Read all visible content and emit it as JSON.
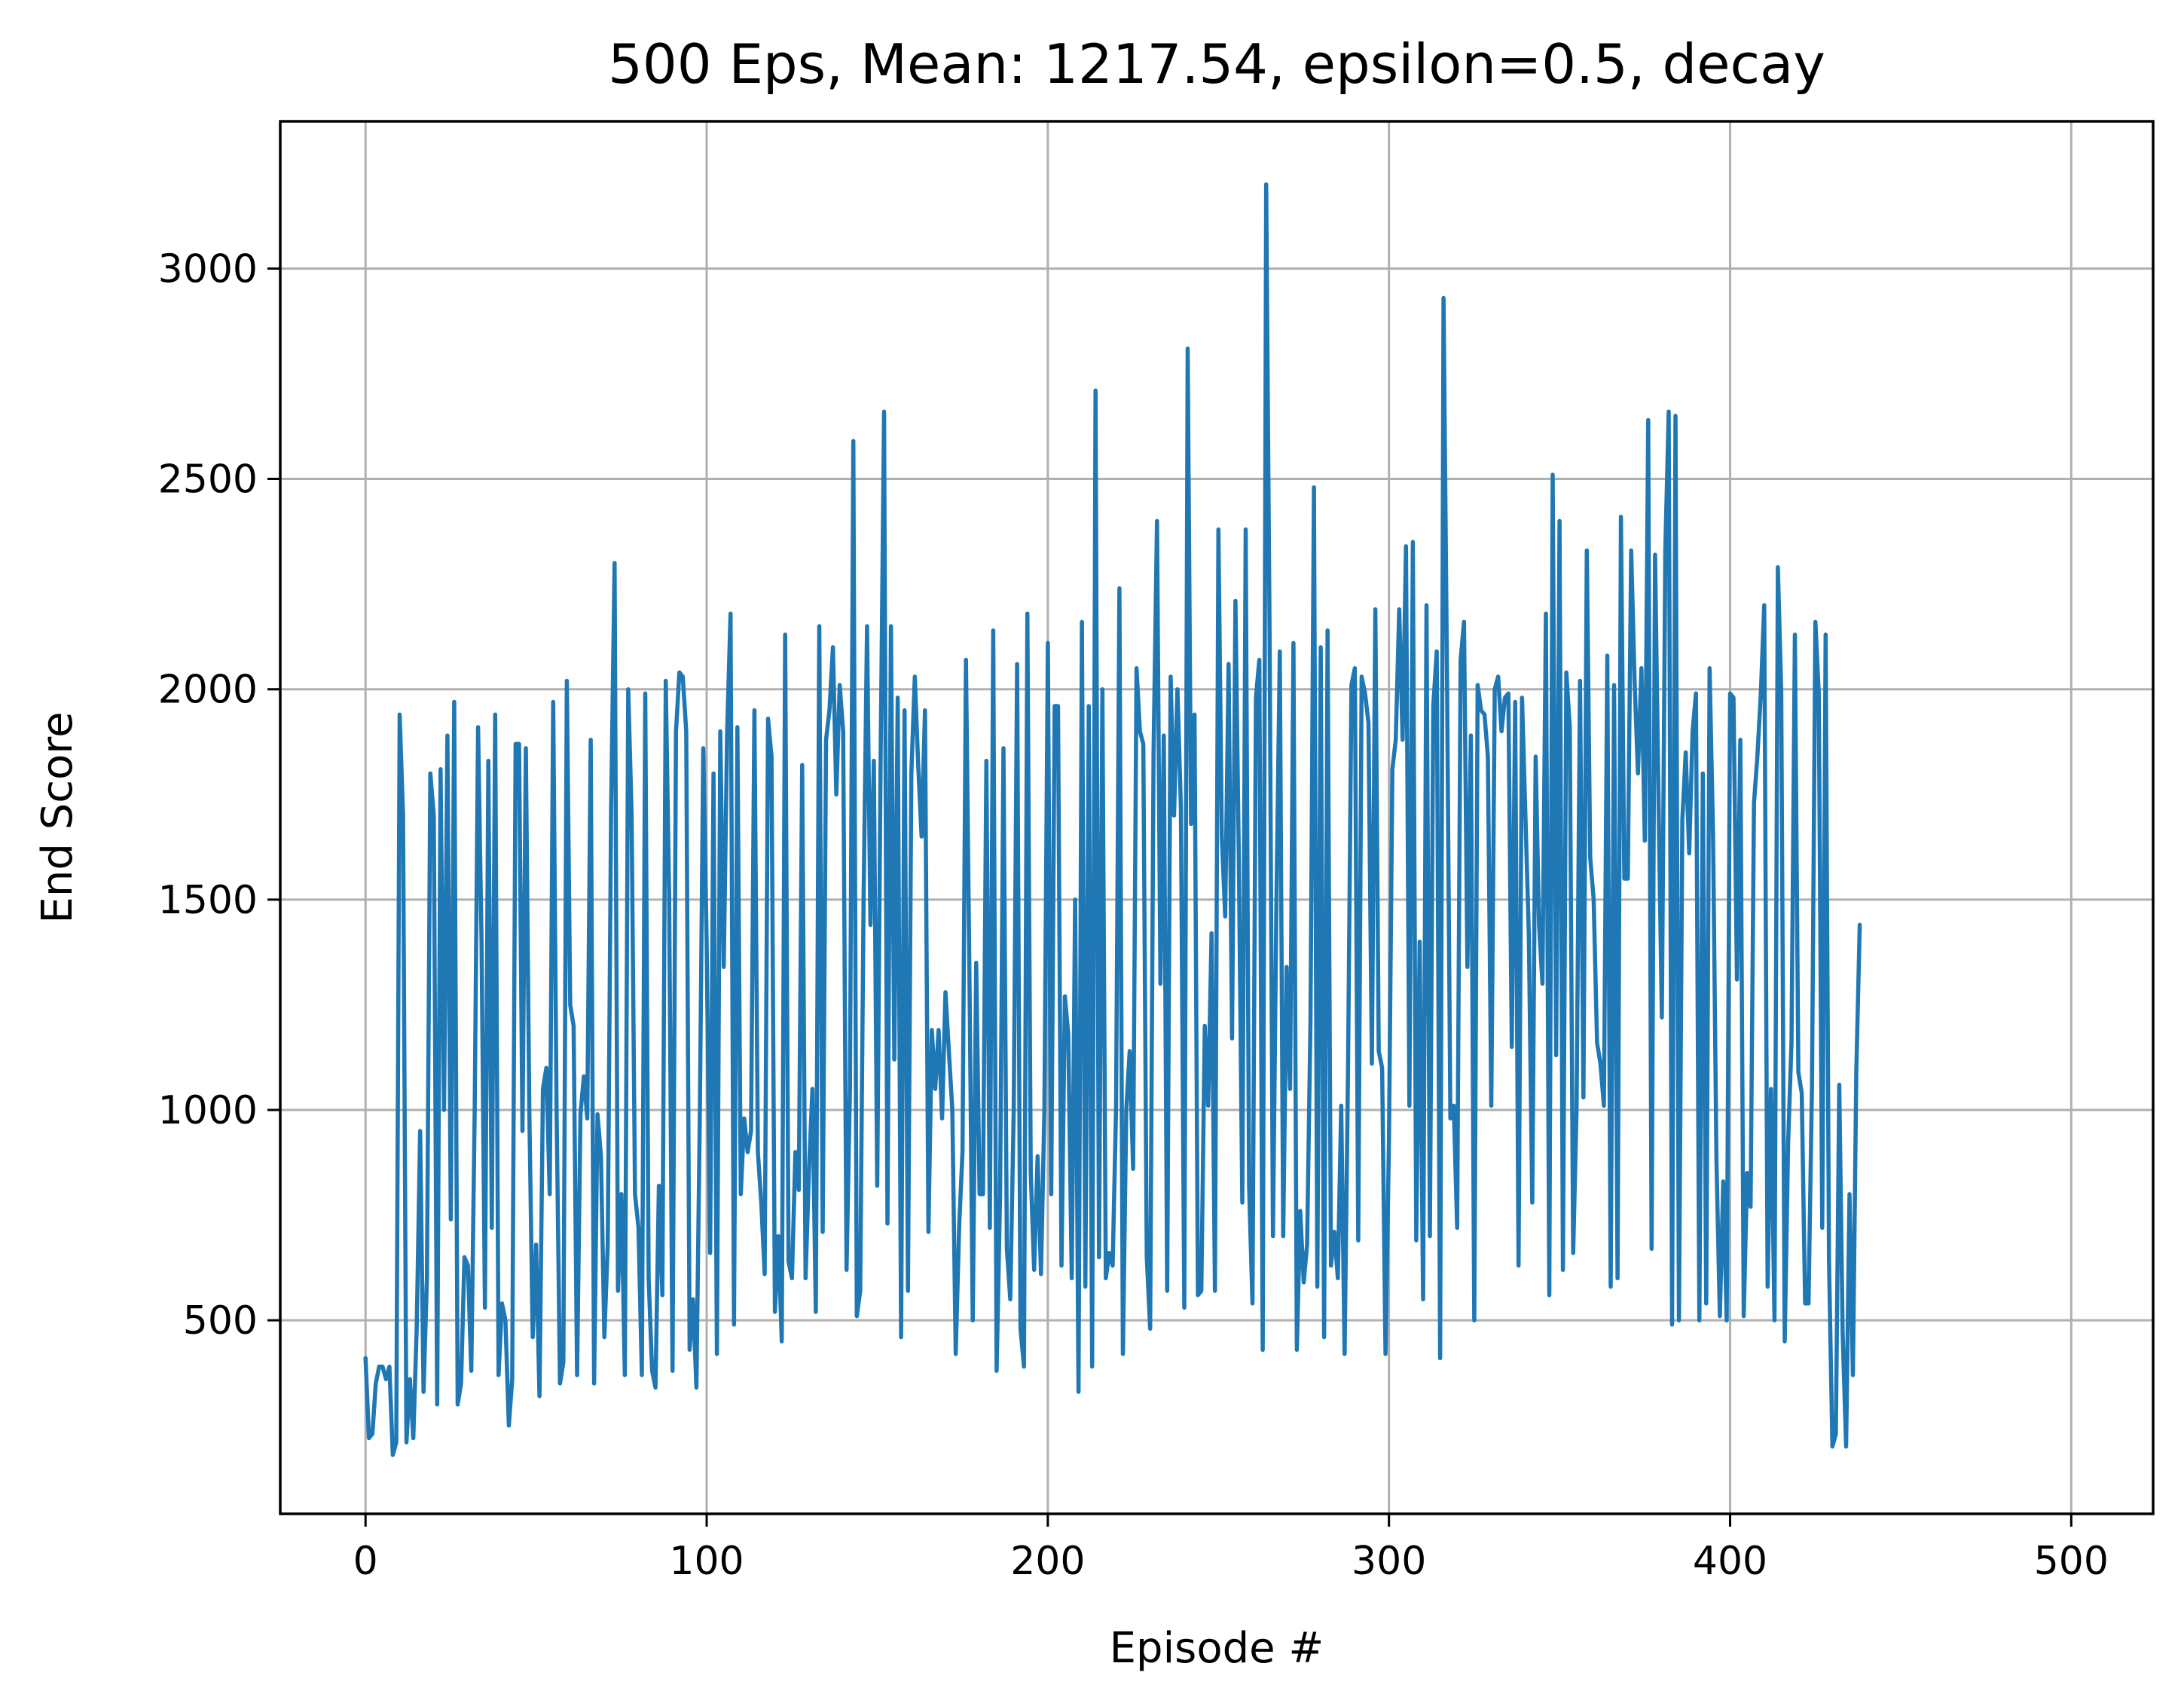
{
  "chart_data": {
    "type": "line",
    "title": "500 Eps, Mean: 1217.54, epsilon=0.5, decay",
    "xlabel": "Episode #",
    "ylabel": "End Score",
    "xlim": [
      -25,
      524
    ],
    "ylim": [
      40,
      3350
    ],
    "xticks": [
      0,
      100,
      200,
      300,
      400,
      500
    ],
    "yticks": [
      500,
      1000,
      1500,
      2000,
      2500,
      3000
    ],
    "xtick_labels": [
      "0",
      "100",
      "200",
      "300",
      "400",
      "500"
    ],
    "ytick_labels": [
      "500",
      "1000",
      "1500",
      "2000",
      "2500",
      "3000"
    ],
    "grid": true,
    "line_color": "#1f77b4",
    "series": [
      {
        "x_start": 0,
        "x_step": 1,
        "y": [
          410,
          220,
          230,
          350,
          390,
          390,
          360,
          390,
          180,
          210,
          1940,
          1700,
          210,
          360,
          220,
          480,
          950,
          330,
          600,
          1800,
          1700,
          300,
          1810,
          1000,
          1890,
          740,
          1970,
          300,
          350,
          650,
          630,
          380,
          1000,
          1910,
          1400,
          530,
          1830,
          720,
          1940,
          370,
          540,
          500,
          250,
          360,
          1870,
          1870,
          950,
          1860,
          1000,
          460,
          680,
          320,
          1050,
          1100,
          800,
          1970,
          1000,
          350,
          400,
          2020,
          1250,
          1200,
          370,
          990,
          1080,
          980,
          1880,
          350,
          990,
          890,
          460,
          680,
          1720,
          2300,
          570,
          800,
          370,
          2000,
          1700,
          800,
          720,
          370,
          1990,
          600,
          380,
          340,
          820,
          560,
          2020,
          1510,
          380,
          1900,
          2040,
          2030,
          1900,
          430,
          550,
          340,
          1000,
          1860,
          1400,
          660,
          1800,
          420,
          1900,
          1340,
          1900,
          2180,
          490,
          1910,
          800,
          980,
          900,
          950,
          1950,
          900,
          780,
          610,
          1930,
          1840,
          520,
          700,
          450,
          2130,
          640,
          600,
          900,
          810,
          1820,
          600,
          860,
          1050,
          520,
          2150,
          710,
          1880,
          1950,
          2100,
          1750,
          2010,
          1900,
          620,
          1050,
          2590,
          510,
          570,
          1500,
          2150,
          1440,
          1830,
          820,
          1850,
          2660,
          730,
          2150,
          1120,
          1980,
          460,
          1950,
          570,
          1800,
          2030,
          1820,
          1650,
          1950,
          710,
          1190,
          1050,
          1190,
          980,
          1280,
          1140,
          1000,
          420,
          720,
          900,
          2070,
          1340,
          500,
          1350,
          800,
          800,
          1830,
          720,
          2140,
          380,
          800,
          1860,
          670,
          550,
          1000,
          2060,
          480,
          390,
          2180,
          850,
          620,
          890,
          610,
          1000,
          2110,
          800,
          1960,
          1960,
          630,
          1270,
          1180,
          600,
          1500,
          330,
          2160,
          580,
          1960,
          390,
          2710,
          650,
          2000,
          600,
          660,
          630,
          1000,
          2240,
          420,
          1000,
          1140,
          860,
          2050,
          1900,
          1870,
          650,
          480,
          1850,
          2400,
          1300,
          1890,
          570,
          2030,
          1700,
          2000,
          1720,
          530,
          2810,
          1680,
          1940,
          560,
          570,
          1200,
          1010,
          1420,
          570,
          2380,
          1650,
          1460,
          2060,
          1170,
          2210,
          1600,
          780,
          2380,
          820,
          540,
          1980,
          2070,
          430,
          3200,
          2140,
          700,
          1480,
          2090,
          700,
          1340,
          1050,
          2110,
          430,
          760,
          590,
          680,
          1210,
          2480,
          580,
          2100,
          460,
          2140,
          630,
          710,
          600,
          1010,
          420,
          1090,
          2010,
          2050,
          690,
          2030,
          1990,
          1920,
          1110,
          2190,
          1140,
          1100,
          420,
          930,
          1810,
          1880,
          2190,
          1880,
          2340,
          1010,
          2350,
          690,
          1400,
          550,
          2200,
          700,
          1960,
          2090,
          410,
          2930,
          2040,
          980,
          1010,
          720,
          2070,
          2160,
          1340,
          1890,
          500,
          2010,
          1950,
          1940,
          1840,
          1010,
          2000,
          2030,
          1900,
          1980,
          1990,
          1150,
          1970,
          630,
          1980,
          1700,
          1420,
          780,
          1840,
          1440,
          1300,
          2180,
          560,
          2510,
          1130,
          2400,
          620,
          2040,
          1910,
          660,
          1000,
          2020,
          1030,
          2330,
          1600,
          1500,
          1160,
          1110,
          1010,
          2080,
          580,
          2010,
          600,
          2410,
          1550,
          1550,
          2330,
          2020,
          1800,
          2050,
          1640,
          2640,
          670,
          2320,
          1750,
          1220,
          2330,
          2660,
          490,
          2650,
          500,
          1690,
          1850,
          1610,
          1900,
          1990,
          500,
          1800,
          540,
          2050,
          1650,
          880,
          510,
          830,
          500,
          1990,
          1980,
          1310,
          1880,
          510,
          850,
          770,
          1730,
          1840,
          1990,
          2200,
          580,
          1050,
          500,
          2290,
          1990,
          450,
          920,
          1160,
          2130,
          1090,
          1040,
          540,
          540,
          1060,
          2160,
          1990,
          720,
          2130,
          640,
          200,
          230,
          1060,
          470,
          200,
          800,
          370,
          1090,
          1440
        ]
      }
    ]
  }
}
